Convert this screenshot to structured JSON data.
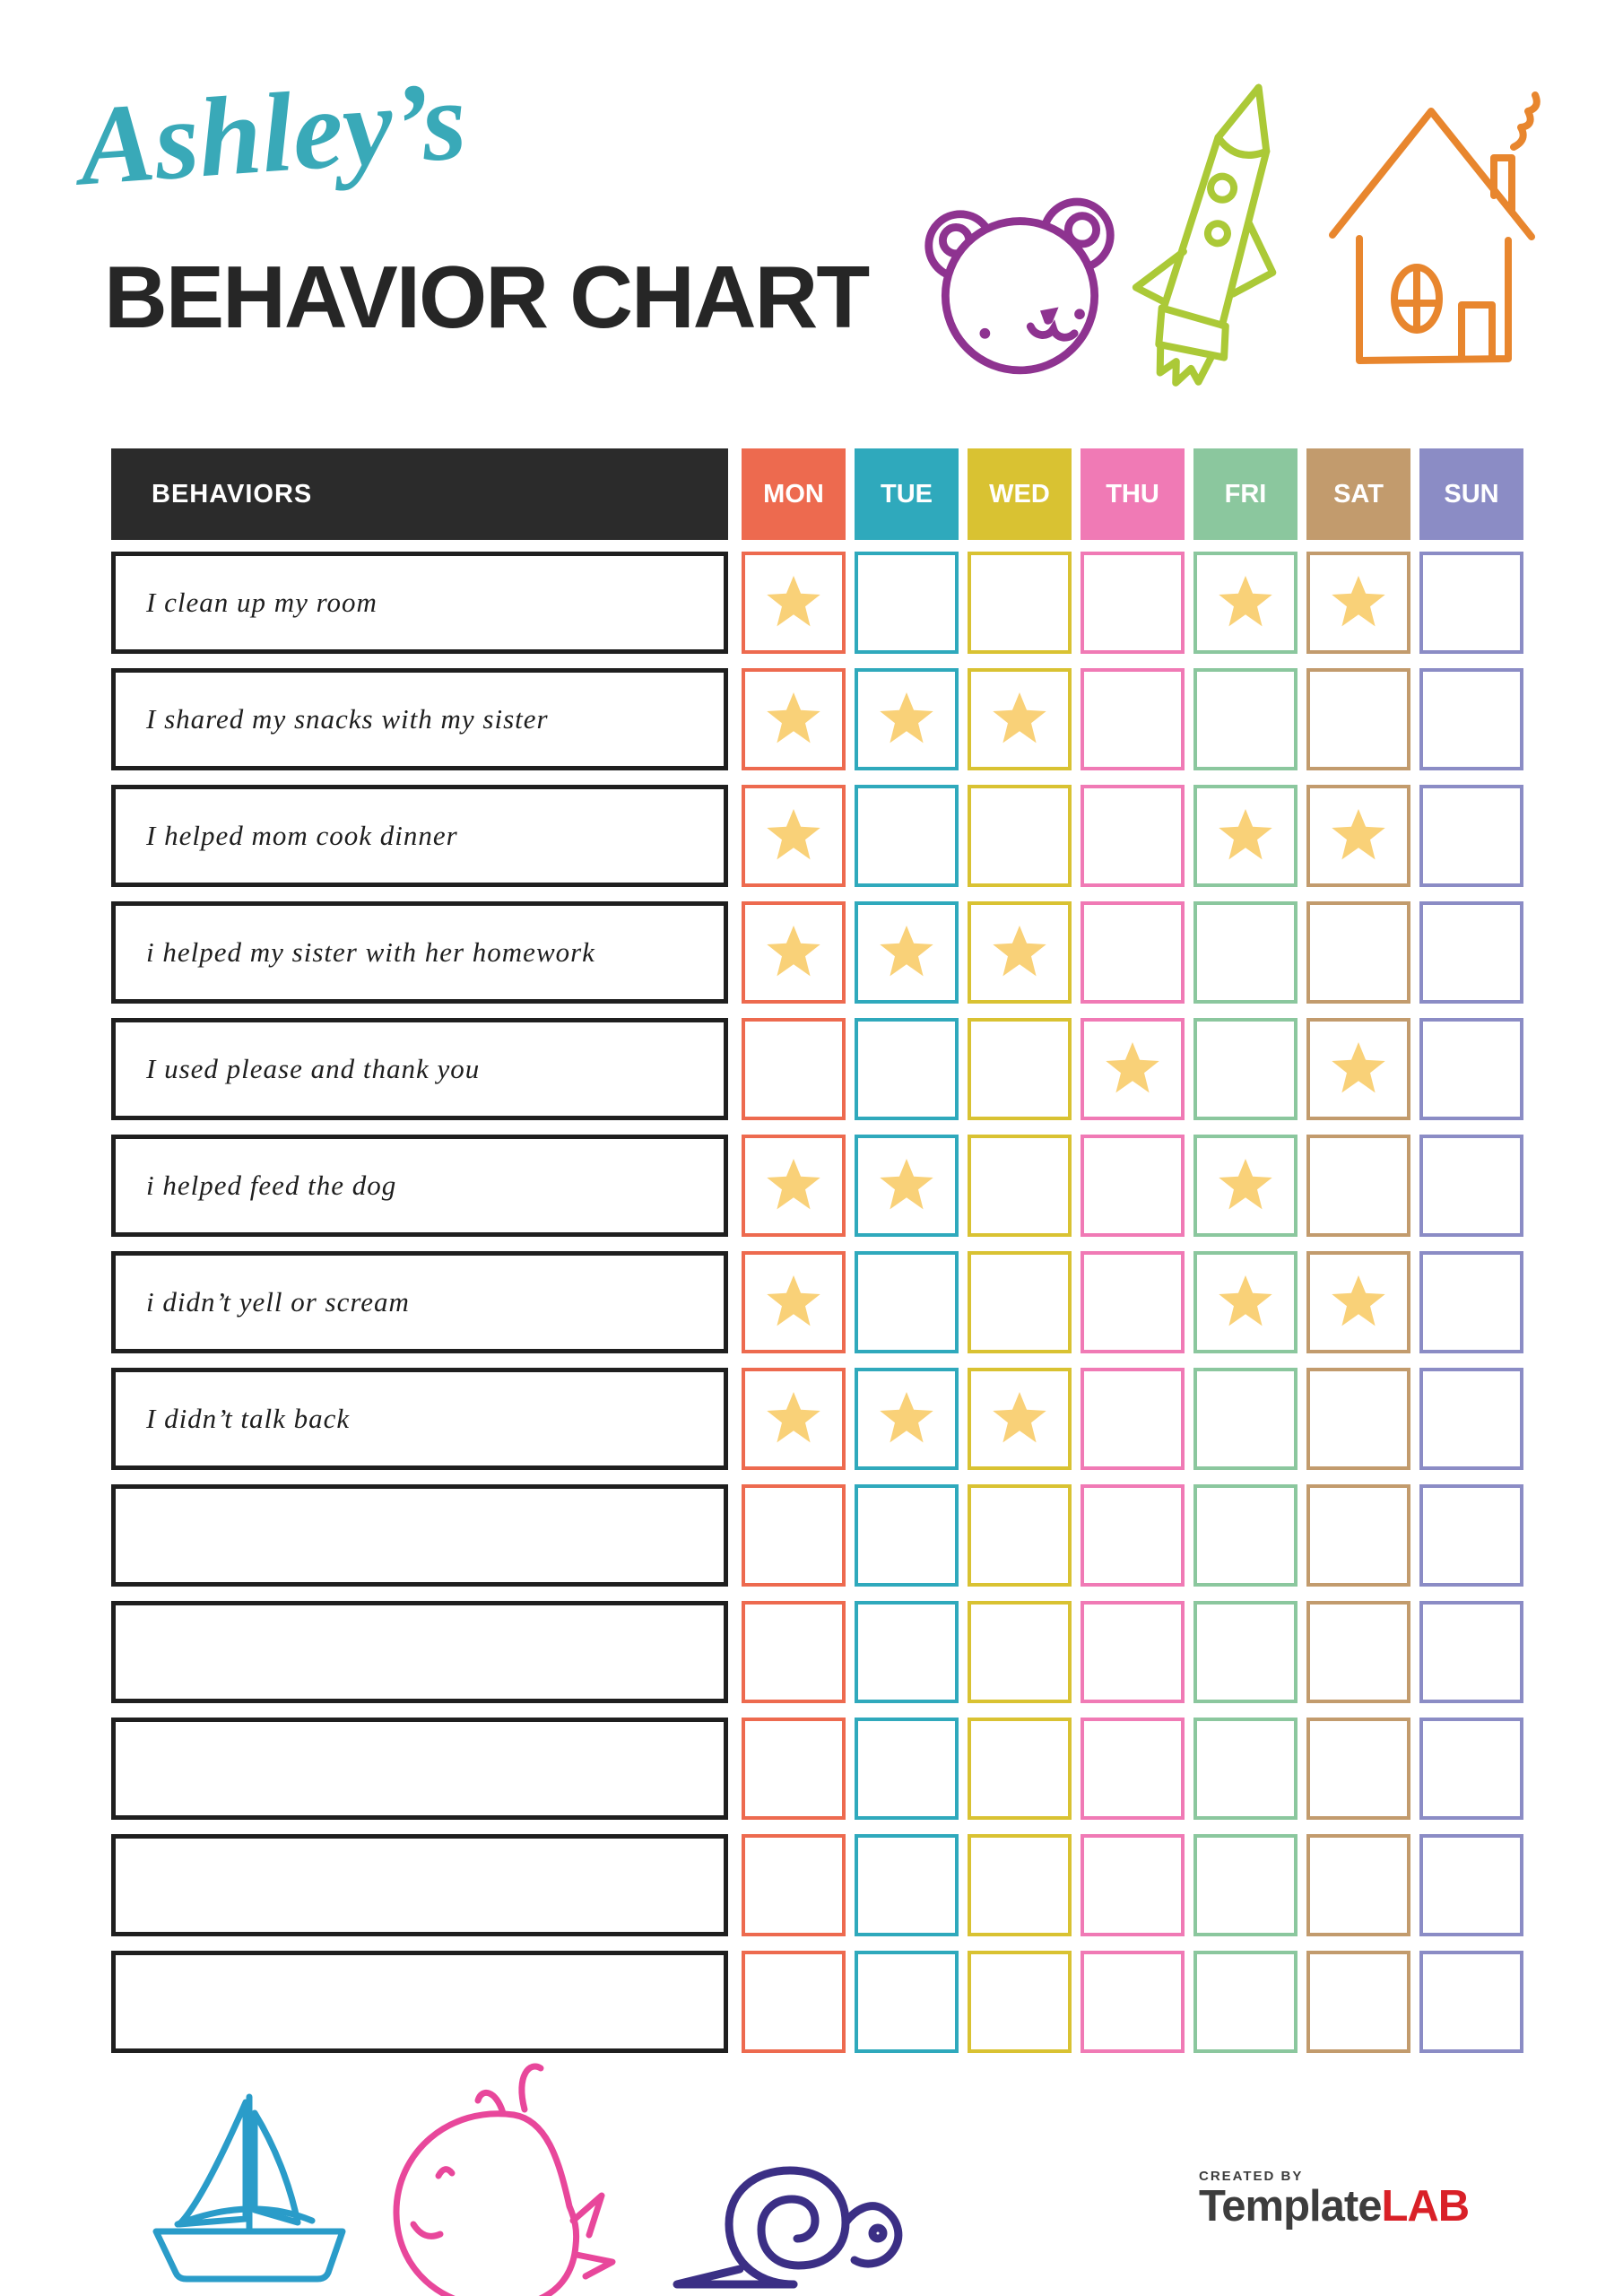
{
  "header": {
    "script_title": "Ashley’s",
    "main_title": "BEHAVIOR CHART",
    "title_color": "#39a9b8",
    "main_title_color": "#262626"
  },
  "table": {
    "behaviors_header": "BEHAVIORS",
    "header_bg": "#2b2b2b",
    "star_color": "#f9d178",
    "days": [
      {
        "label": "MON",
        "color": "#ed6a4f"
      },
      {
        "label": "TUE",
        "color": "#2fa9bc"
      },
      {
        "label": "WED",
        "color": "#d9c232"
      },
      {
        "label": "THU",
        "color": "#f07ab5"
      },
      {
        "label": "FRI",
        "color": "#8bc79e"
      },
      {
        "label": "SAT",
        "color": "#c29b6d"
      },
      {
        "label": "SUN",
        "color": "#8b8cc5"
      }
    ],
    "rows": [
      {
        "behavior": "I clean up my room",
        "stars": [
          1,
          0,
          0,
          0,
          1,
          1,
          0
        ]
      },
      {
        "behavior": "I shared my snacks with my sister",
        "stars": [
          1,
          1,
          1,
          0,
          0,
          0,
          0
        ]
      },
      {
        "behavior": "I helped mom cook dinner",
        "stars": [
          1,
          0,
          0,
          0,
          1,
          1,
          0
        ]
      },
      {
        "behavior": "i helped my sister with her homework",
        "stars": [
          1,
          1,
          1,
          0,
          0,
          0,
          0
        ]
      },
      {
        "behavior": "I used please and thank you",
        "stars": [
          0,
          0,
          0,
          1,
          0,
          1,
          0
        ]
      },
      {
        "behavior": "i helped feed the dog",
        "stars": [
          1,
          1,
          0,
          0,
          1,
          0,
          0
        ]
      },
      {
        "behavior": "i didn’t yell or scream",
        "stars": [
          1,
          0,
          0,
          0,
          1,
          1,
          0
        ]
      },
      {
        "behavior": "I didn’t talk back",
        "stars": [
          1,
          1,
          1,
          0,
          0,
          0,
          0
        ]
      },
      {
        "behavior": "",
        "stars": [
          0,
          0,
          0,
          0,
          0,
          0,
          0
        ]
      },
      {
        "behavior": "",
        "stars": [
          0,
          0,
          0,
          0,
          0,
          0,
          0
        ]
      },
      {
        "behavior": "",
        "stars": [
          0,
          0,
          0,
          0,
          0,
          0,
          0
        ]
      },
      {
        "behavior": "",
        "stars": [
          0,
          0,
          0,
          0,
          0,
          0,
          0
        ]
      },
      {
        "behavior": "",
        "stars": [
          0,
          0,
          0,
          0,
          0,
          0,
          0
        ]
      }
    ]
  },
  "decorations": {
    "bear_color": "#8e3390",
    "rocket_color": "#abc937",
    "house_color": "#e8862e",
    "sailboat_color": "#2a9cc9",
    "whale_color": "#e8479b",
    "snail_color": "#3b2f85"
  },
  "footer": {
    "created_by_label": "CREATED BY",
    "brand_name_part1": "Template",
    "brand_name_part2": "LAB",
    "brand_color_dark": "#3d3d3d",
    "brand_color_red": "#d92027"
  }
}
